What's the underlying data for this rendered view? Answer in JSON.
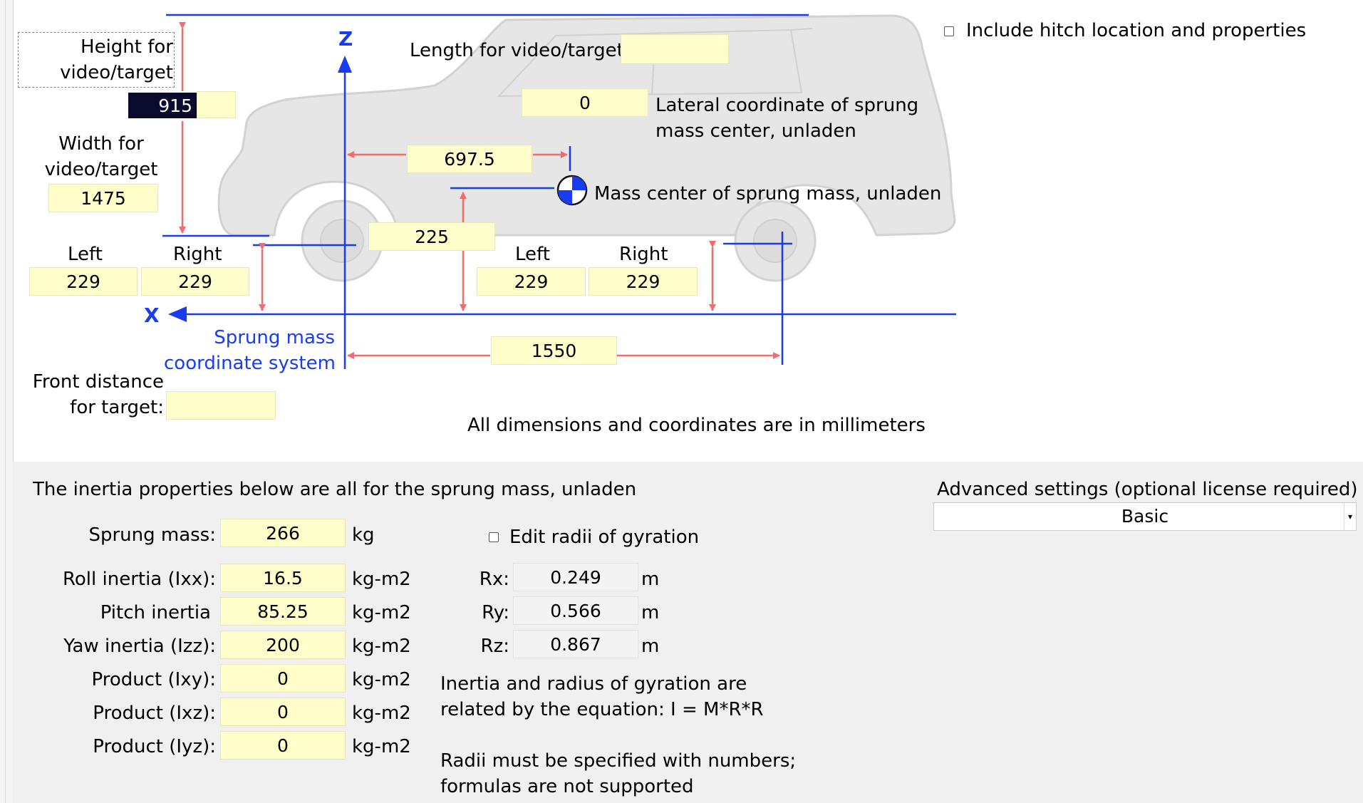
{
  "diagram": {
    "height_label": "Height for\nvideo/target",
    "height_value": "915",
    "width_label": "Width for\nvideo/target",
    "width_value": "1475",
    "length_label": "Length for video/target:",
    "length_value": "",
    "lateral_value": "0",
    "lateral_label": "Lateral coordinate of sprung\nmass center, unladen",
    "cg_x_value": "697.5",
    "mass_center_label": "Mass center of sprung mass, unladen",
    "cg_height_value": "225",
    "front_left_label": "Left",
    "front_right_label": "Right",
    "front_left_value": "229",
    "front_right_value": "229",
    "rear_left_label": "Left",
    "rear_right_label": "Right",
    "rear_left_value": "229",
    "rear_right_value": "229",
    "wheelbase_value": "1550",
    "axis_z": "Z",
    "axis_x": "X",
    "coord_system_label": "Sprung mass\ncoordinate system",
    "front_distance_label": "Front distance\nfor target:",
    "front_distance_value": "",
    "units_note": "All dimensions and coordinates are in millimeters"
  },
  "hitch": {
    "label": "Include hitch location and properties",
    "checked": false
  },
  "inertia": {
    "header": "The inertia properties below are all for the sprung mass, unladen",
    "rows": [
      {
        "label": "Sprung mass:",
        "value": "266",
        "unit": "kg"
      },
      {
        "label": "Roll inertia (Ixx):",
        "value": "16.5",
        "unit": "kg-m2"
      },
      {
        "label": "Pitch inertia",
        "value": "85.25",
        "unit": "kg-m2"
      },
      {
        "label": "Yaw inertia (Izz):",
        "value": "200",
        "unit": "kg-m2"
      },
      {
        "label": "Product (Ixy):",
        "value": "0",
        "unit": "kg-m2"
      },
      {
        "label": "Product (Ixz):",
        "value": "0",
        "unit": "kg-m2"
      },
      {
        "label": "Product (Iyz):",
        "value": "0",
        "unit": "kg-m2"
      }
    ],
    "edit_radii_label": "Edit radii of gyration",
    "edit_radii_checked": false,
    "radii": [
      {
        "label": "Rx:",
        "value": "0.249",
        "unit": "m"
      },
      {
        "label": "Ry:",
        "value": "0.566",
        "unit": "m"
      },
      {
        "label": "Rz:",
        "value": "0.867",
        "unit": "m"
      }
    ],
    "note1": "Inertia and radius of gyration are\nrelated by the equation: I = M*R*R",
    "note2": "Radii must be specified with numbers;\nformulas are not supported"
  },
  "advanced": {
    "label": "Advanced settings (optional license required)",
    "selected": "Basic"
  },
  "colors": {
    "field_bg": "#ffffcc",
    "arrow_red": "#f36b6b",
    "axis_blue": "#1a3cf0",
    "panel_bg": "#f0f0f0"
  }
}
